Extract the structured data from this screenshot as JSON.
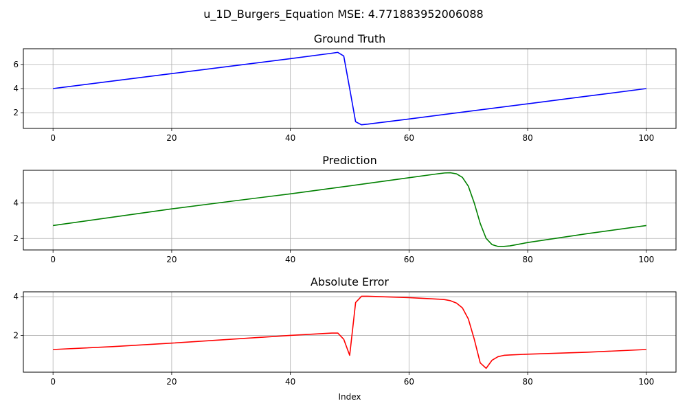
{
  "figure": {
    "suptitle": "u_1D_Burgers_Equation MSE: 4.771883952006088"
  },
  "chart_data": [
    {
      "type": "line",
      "title": "Ground Truth",
      "xlabel": "",
      "ylabel": "",
      "xlim": [
        -5,
        105
      ],
      "ylim": [
        0.7,
        7.3
      ],
      "xticks": [
        0,
        20,
        40,
        60,
        80,
        100
      ],
      "xtick_labels": [
        "0",
        "20",
        "40",
        "60",
        "80",
        "100"
      ],
      "yticks": [
        2,
        4,
        6
      ],
      "ytick_labels": [
        "2",
        "4",
        "6"
      ],
      "grid": true,
      "color": "#0000ff",
      "x": [
        0,
        10,
        20,
        30,
        40,
        47,
        48,
        49,
        50,
        51,
        52,
        53,
        60,
        70,
        80,
        90,
        100
      ],
      "y": [
        4.0,
        4.62,
        5.24,
        5.86,
        6.48,
        6.93,
        7.0,
        6.7,
        4.0,
        1.25,
        1.0,
        1.05,
        1.48,
        2.11,
        2.74,
        3.37,
        4.0
      ]
    },
    {
      "type": "line",
      "title": "Prediction",
      "xlabel": "",
      "ylabel": "",
      "xlim": [
        -5,
        105
      ],
      "ylim": [
        1.35,
        5.85
      ],
      "xticks": [
        0,
        20,
        40,
        60,
        80,
        100
      ],
      "xtick_labels": [
        "0",
        "20",
        "40",
        "60",
        "80",
        "100"
      ],
      "yticks": [
        2,
        4
      ],
      "ytick_labels": [
        "2",
        "4"
      ],
      "grid": true,
      "color": "#008000",
      "x": [
        0,
        10,
        20,
        30,
        40,
        50,
        60,
        65,
        66,
        67,
        68,
        69,
        70,
        71,
        72,
        73,
        74,
        75,
        76,
        77,
        80,
        90,
        100
      ],
      "y": [
        2.73,
        3.2,
        3.67,
        4.1,
        4.52,
        4.97,
        5.43,
        5.66,
        5.7,
        5.71,
        5.65,
        5.45,
        4.95,
        4.0,
        2.85,
        2.0,
        1.65,
        1.55,
        1.55,
        1.58,
        1.77,
        2.27,
        2.73
      ]
    },
    {
      "type": "line",
      "title": "Absolute Error",
      "xlabel": "Index",
      "ylabel": "",
      "xlim": [
        -5,
        105
      ],
      "ylim": [
        0.1,
        4.25
      ],
      "xticks": [
        0,
        20,
        40,
        60,
        80,
        100
      ],
      "xtick_labels": [
        "0",
        "20",
        "40",
        "60",
        "80",
        "100"
      ],
      "yticks": [
        2,
        4
      ],
      "ytick_labels": [
        "2",
        "4"
      ],
      "grid": true,
      "color": "#ff0000",
      "x": [
        0,
        10,
        20,
        30,
        40,
        47,
        48,
        49,
        50,
        51,
        52,
        53,
        60,
        65,
        66,
        67,
        68,
        69,
        70,
        71,
        72,
        73,
        74,
        75,
        76,
        77,
        80,
        90,
        100
      ],
      "y": [
        1.27,
        1.42,
        1.6,
        1.8,
        2.0,
        2.12,
        2.12,
        1.8,
        0.97,
        3.7,
        4.02,
        4.02,
        3.95,
        3.87,
        3.85,
        3.79,
        3.67,
        3.42,
        2.85,
        1.8,
        0.58,
        0.3,
        0.72,
        0.9,
        0.97,
        0.99,
        1.03,
        1.13,
        1.27
      ]
    }
  ]
}
